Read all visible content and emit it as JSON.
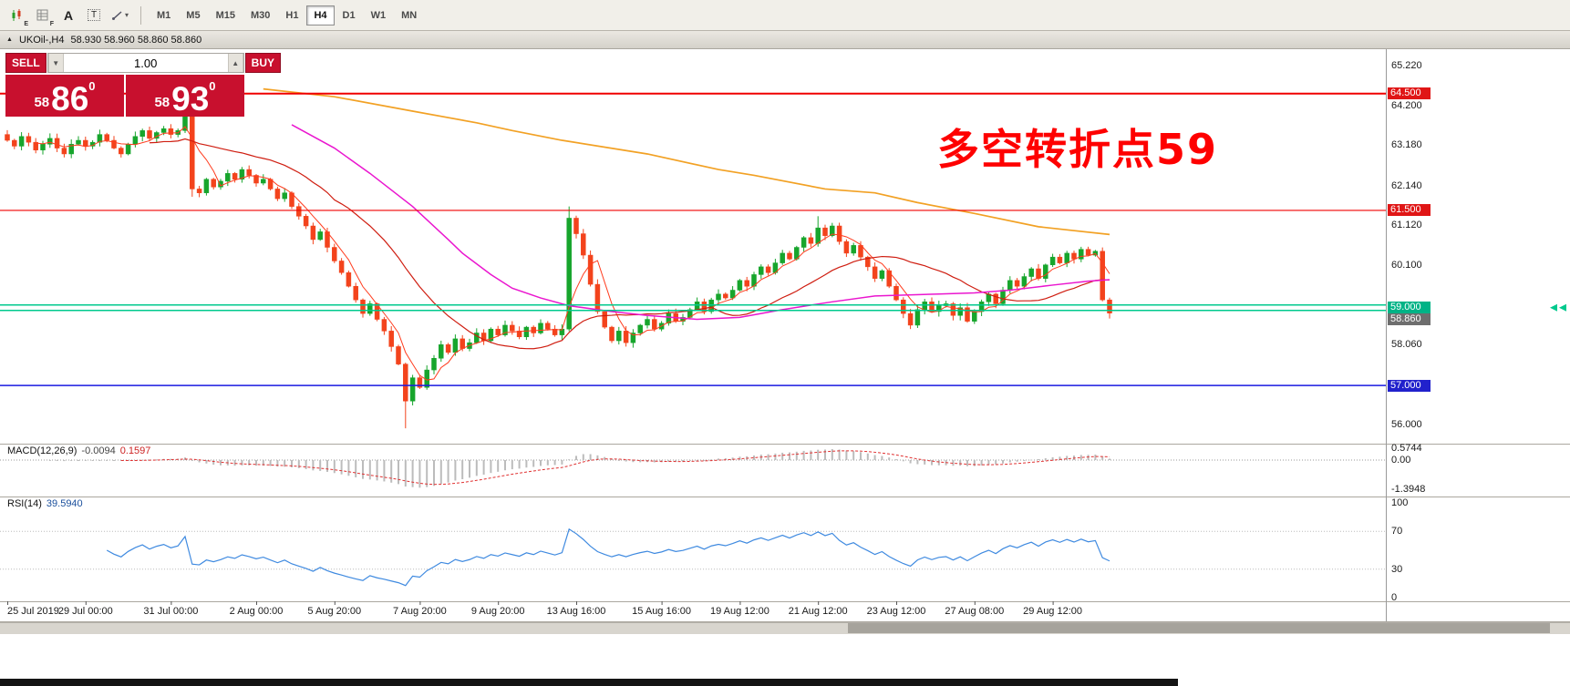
{
  "window": {
    "symbol_title": "UKOil-,H4",
    "ohlc": "58.930 58.960 58.860 58.860"
  },
  "toolbar": {
    "timeframes": [
      "M1",
      "M5",
      "M15",
      "M30",
      "H1",
      "H4",
      "D1",
      "W1",
      "MN"
    ],
    "active_timeframe": "H4"
  },
  "icons": {
    "objects_e": "E",
    "objects_f": "F",
    "text_label": "A",
    "text_tool": "T",
    "dropdown_caret": "▾",
    "window_menu": "▲",
    "volume_decrease": "▼",
    "volume_increase": "▲"
  },
  "trade_panel": {
    "sell_label": "SELL",
    "buy_label": "BUY",
    "volume": "1.00",
    "sell_price": {
      "small": "58",
      "big": "86",
      "sup": "0"
    },
    "buy_price": {
      "small": "58",
      "big": "93",
      "sup": "0"
    }
  },
  "annotation": {
    "text": "多空转折点59",
    "color": "#fe0000"
  },
  "indicators": {
    "macd": {
      "label": "MACD(12,26,9)",
      "value_main": "-0.0094",
      "value_signal": "0.1597",
      "axis": [
        {
          "v": 0.5744,
          "text": "0.5744"
        },
        {
          "v": 0,
          "text": "0.00"
        },
        {
          "v": -1.3948,
          "text": "-1.3948"
        }
      ]
    },
    "rsi": {
      "label": "RSI(14)",
      "value": "39.5940",
      "axis": [
        {
          "v": 100,
          "text": "100"
        },
        {
          "v": 70,
          "text": "70"
        },
        {
          "v": 30,
          "text": "30"
        },
        {
          "v": 0,
          "text": "0"
        }
      ],
      "levels": [
        70,
        30
      ]
    }
  },
  "price_axis": [
    {
      "v": 65.22,
      "text": "65.220"
    },
    {
      "v": 64.2,
      "text": "64.200"
    },
    {
      "v": 63.18,
      "text": "63.180"
    },
    {
      "v": 62.14,
      "text": "62.140"
    },
    {
      "v": 61.12,
      "text": "61.120"
    },
    {
      "v": 60.1,
      "text": "60.100"
    },
    {
      "v": 58.06,
      "text": "58.060"
    },
    {
      "v": 56.0,
      "text": "56.000"
    }
  ],
  "hlines": [
    {
      "price": 64.5,
      "text": "64.500",
      "color": "#f00000",
      "badge": "#e01616",
      "width": 2,
      "double": false
    },
    {
      "price": 61.5,
      "text": "61.500",
      "color": "#f00000",
      "badge": "#e01616",
      "width": 1.2,
      "double": false
    },
    {
      "price": 59.0,
      "text": "59.000",
      "color": "#00c98d",
      "badge": "#00b386",
      "width": 1.5,
      "double": true
    },
    {
      "price": 57.0,
      "text": "57.000",
      "color": "#1a1ae0",
      "badge": "#2121cc",
      "width": 1.5,
      "double": false
    }
  ],
  "bid": {
    "price": 58.86,
    "text": "58.860",
    "badge": "#6e6e6e"
  },
  "time_axis": [
    {
      "i": 0,
      "text": "25 Jul 2019"
    },
    {
      "i": 11,
      "text": "29 Jul 00:00"
    },
    {
      "i": 23,
      "text": "31 Jul 00:00"
    },
    {
      "i": 35,
      "text": "2 Aug 00:00"
    },
    {
      "i": 46,
      "text": "5 Aug 20:00"
    },
    {
      "i": 58,
      "text": "7 Aug 20:00"
    },
    {
      "i": 69,
      "text": "9 Aug 20:00"
    },
    {
      "i": 80,
      "text": "13 Aug 16:00"
    },
    {
      "i": 92,
      "text": "15 Aug 16:00"
    },
    {
      "i": 103,
      "text": "19 Aug 12:00"
    },
    {
      "i": 114,
      "text": "21 Aug 12:00"
    },
    {
      "i": 125,
      "text": "23 Aug 12:00"
    },
    {
      "i": 136,
      "text": "27 Aug 08:00"
    },
    {
      "i": 147,
      "text": "29 Aug 12:00"
    }
  ],
  "chart_data": {
    "type": "candlestick",
    "symbol": "UKOil-",
    "timeframe": "H4",
    "first_open": 63.45,
    "closes": [
      63.3,
      63.15,
      63.4,
      63.25,
      63.05,
      63.2,
      63.35,
      63.1,
      62.95,
      63.2,
      63.3,
      63.15,
      63.25,
      63.45,
      63.3,
      63.1,
      62.95,
      63.2,
      63.4,
      63.55,
      63.35,
      63.5,
      63.6,
      63.45,
      63.55,
      64.15,
      62.05,
      61.95,
      62.3,
      62.1,
      62.25,
      62.45,
      62.3,
      62.55,
      62.4,
      62.2,
      62.3,
      62.05,
      61.8,
      61.95,
      61.6,
      61.35,
      61.1,
      60.75,
      60.95,
      60.55,
      60.2,
      59.9,
      59.55,
      59.2,
      58.85,
      59.1,
      58.7,
      58.4,
      58.0,
      57.55,
      56.6,
      57.2,
      56.95,
      57.4,
      57.7,
      58.05,
      57.85,
      58.2,
      57.95,
      58.1,
      58.35,
      58.15,
      58.45,
      58.3,
      58.55,
      58.4,
      58.25,
      58.5,
      58.35,
      58.6,
      58.45,
      58.3,
      58.45,
      61.3,
      60.9,
      60.35,
      59.6,
      58.9,
      58.5,
      58.15,
      58.4,
      58.1,
      58.35,
      58.55,
      58.7,
      58.45,
      58.6,
      58.85,
      58.65,
      58.75,
      58.95,
      59.15,
      58.9,
      59.2,
      59.35,
      59.25,
      59.45,
      59.7,
      59.55,
      59.85,
      60.05,
      59.9,
      60.15,
      60.4,
      60.25,
      60.55,
      60.8,
      60.65,
      61.05,
      60.85,
      61.1,
      60.7,
      60.4,
      60.6,
      60.3,
      60.05,
      59.75,
      59.95,
      59.55,
      59.2,
      58.85,
      58.55,
      58.95,
      59.15,
      58.9,
      59.05,
      59.1,
      58.8,
      59.0,
      58.65,
      58.9,
      59.15,
      59.35,
      59.1,
      59.45,
      59.7,
      59.55,
      59.8,
      60.0,
      59.75,
      60.1,
      60.3,
      60.15,
      60.4,
      60.25,
      60.5,
      60.35,
      60.45,
      59.2,
      58.86
    ],
    "overrides": {
      "25": {
        "high": 64.28
      },
      "26": {
        "low": 61.85
      },
      "56": {
        "low": 55.9
      },
      "79": {
        "high": 61.6
      },
      "114": {
        "high": 61.35
      },
      "155": {
        "low": 58.72
      }
    },
    "ma_orange": [
      [
        36,
        64.62
      ],
      [
        46,
        64.42
      ],
      [
        57,
        64.05
      ],
      [
        66,
        63.75
      ],
      [
        71,
        63.55
      ],
      [
        78,
        63.3
      ],
      [
        90,
        62.95
      ],
      [
        100,
        62.55
      ],
      [
        105,
        62.4
      ],
      [
        115,
        62.05
      ],
      [
        122,
        61.95
      ],
      [
        128,
        61.7
      ],
      [
        136,
        61.42
      ],
      [
        145,
        61.08
      ],
      [
        155,
        60.88
      ]
    ],
    "ma_magenta": [
      [
        40,
        63.7
      ],
      [
        46,
        63.1
      ],
      [
        51,
        62.45
      ],
      [
        57,
        61.6
      ],
      [
        62,
        60.75
      ],
      [
        64,
        60.4
      ],
      [
        68,
        59.85
      ],
      [
        71,
        59.5
      ],
      [
        75,
        59.25
      ],
      [
        79,
        59.05
      ],
      [
        85,
        58.9
      ],
      [
        90,
        58.8
      ],
      [
        97,
        58.7
      ],
      [
        103,
        58.75
      ],
      [
        109,
        58.95
      ],
      [
        116,
        59.15
      ],
      [
        122,
        59.3
      ],
      [
        131,
        59.35
      ],
      [
        136,
        59.38
      ],
      [
        141,
        59.45
      ],
      [
        147,
        59.58
      ],
      [
        152,
        59.68
      ],
      [
        155,
        59.72
      ]
    ],
    "sma_periods": [
      5,
      21
    ]
  },
  "colors": {
    "bull": "#17a52c",
    "bear": "#f3431c",
    "ma_orange": "#f2a124",
    "ma_magenta": "#ea16cf",
    "ma_red_fast": "#ff3c1e",
    "ma_red_slow": "#cf1d10",
    "macd_hist": "#bcbcbc",
    "macd_signal": "#e03131",
    "rsi_line": "#3f8ae0",
    "separator": "#aba79f",
    "axis_line": "#9a9a9a"
  }
}
